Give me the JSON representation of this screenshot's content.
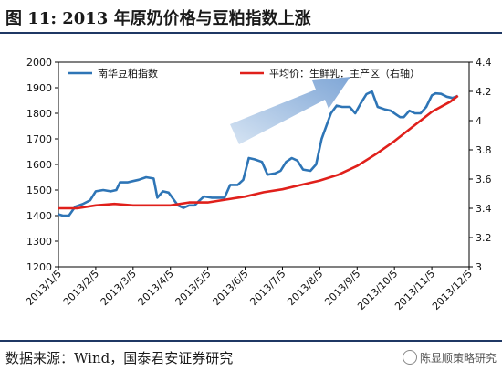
{
  "figure": {
    "title": "图 11:    2013 年原奶价格与豆粕指数上涨",
    "source": "数据来源：Wind，国泰君安证券研究",
    "watermark": "陈显顺策略研究"
  },
  "chart_data": {
    "type": "line",
    "title": "",
    "xlabel": "",
    "ylabel": "",
    "y_left_lim": [
      1200,
      2000
    ],
    "y_left_ticks": [
      1200,
      1300,
      1400,
      1500,
      1600,
      1700,
      1800,
      1900,
      2000
    ],
    "y_right_lim": [
      3.0,
      4.4
    ],
    "y_right_ticks": [
      "3",
      "3.2",
      "3.4",
      "3.6",
      "3.8",
      "4",
      "4.2",
      "4.4"
    ],
    "x_ticks": [
      "2013/1/5",
      "2013/2/5",
      "2013/3/5",
      "2013/4/5",
      "2013/5/5",
      "2013/6/5",
      "2013/7/5",
      "2013/8/5",
      "2013/9/5",
      "2013/10/5",
      "2013/11/5",
      "2013/12/5"
    ],
    "legend_position": "top",
    "annotation": "upward-arrow",
    "series": [
      {
        "name": "南华豆粕指数",
        "axis": "left",
        "color": "#2e75b6",
        "points": [
          [
            0,
            1405
          ],
          [
            0.12,
            1400
          ],
          [
            0.28,
            1400
          ],
          [
            0.45,
            1435
          ],
          [
            0.65,
            1445
          ],
          [
            0.85,
            1460
          ],
          [
            1.0,
            1495
          ],
          [
            1.2,
            1500
          ],
          [
            1.4,
            1495
          ],
          [
            1.55,
            1500
          ],
          [
            1.65,
            1530
          ],
          [
            1.85,
            1530
          ],
          [
            2.0,
            1535
          ],
          [
            2.15,
            1540
          ],
          [
            2.35,
            1550
          ],
          [
            2.55,
            1545
          ],
          [
            2.65,
            1470
          ],
          [
            2.8,
            1495
          ],
          [
            2.95,
            1490
          ],
          [
            3.05,
            1470
          ],
          [
            3.2,
            1440
          ],
          [
            3.35,
            1430
          ],
          [
            3.5,
            1440
          ],
          [
            3.65,
            1440
          ],
          [
            3.75,
            1455
          ],
          [
            3.9,
            1475
          ],
          [
            4.1,
            1470
          ],
          [
            4.25,
            1470
          ],
          [
            4.45,
            1470
          ],
          [
            4.6,
            1520
          ],
          [
            4.8,
            1520
          ],
          [
            4.95,
            1540
          ],
          [
            5.1,
            1625
          ],
          [
            5.25,
            1620
          ],
          [
            5.45,
            1610
          ],
          [
            5.6,
            1560
          ],
          [
            5.8,
            1565
          ],
          [
            5.95,
            1575
          ],
          [
            6.1,
            1610
          ],
          [
            6.25,
            1625
          ],
          [
            6.4,
            1615
          ],
          [
            6.55,
            1580
          ],
          [
            6.75,
            1575
          ],
          [
            6.9,
            1600
          ],
          [
            7.05,
            1700
          ],
          [
            7.2,
            1760
          ],
          [
            7.3,
            1800
          ],
          [
            7.45,
            1830
          ],
          [
            7.6,
            1825
          ],
          [
            7.8,
            1825
          ],
          [
            7.95,
            1800
          ],
          [
            8.1,
            1840
          ],
          [
            8.25,
            1875
          ],
          [
            8.4,
            1885
          ],
          [
            8.55,
            1825
          ],
          [
            8.75,
            1815
          ],
          [
            8.9,
            1810
          ],
          [
            9.05,
            1795
          ],
          [
            9.15,
            1785
          ],
          [
            9.25,
            1785
          ],
          [
            9.4,
            1810
          ],
          [
            9.55,
            1800
          ],
          [
            9.7,
            1800
          ],
          [
            9.85,
            1825
          ],
          [
            10.0,
            1870
          ],
          [
            10.1,
            1878
          ],
          [
            10.25,
            1876
          ],
          [
            10.4,
            1865
          ],
          [
            10.55,
            1860
          ],
          [
            10.7,
            1868
          ]
        ]
      },
      {
        "name": "平均价：生鲜乳：主产区（右轴）",
        "axis": "right",
        "color": "#e0201b",
        "points": [
          [
            0,
            3.4
          ],
          [
            0.5,
            3.4
          ],
          [
            1.0,
            3.42
          ],
          [
            1.5,
            3.43
          ],
          [
            2.0,
            3.42
          ],
          [
            2.5,
            3.42
          ],
          [
            3.0,
            3.42
          ],
          [
            3.5,
            3.44
          ],
          [
            4.0,
            3.44
          ],
          [
            4.5,
            3.46
          ],
          [
            5.0,
            3.48
          ],
          [
            5.5,
            3.51
          ],
          [
            6.0,
            3.53
          ],
          [
            6.5,
            3.56
          ],
          [
            7.0,
            3.59
          ],
          [
            7.5,
            3.63
          ],
          [
            8.0,
            3.69
          ],
          [
            8.5,
            3.77
          ],
          [
            9.0,
            3.86
          ],
          [
            9.5,
            3.96
          ],
          [
            10.0,
            4.06
          ],
          [
            10.5,
            4.13
          ],
          [
            10.7,
            4.17
          ]
        ]
      }
    ]
  }
}
